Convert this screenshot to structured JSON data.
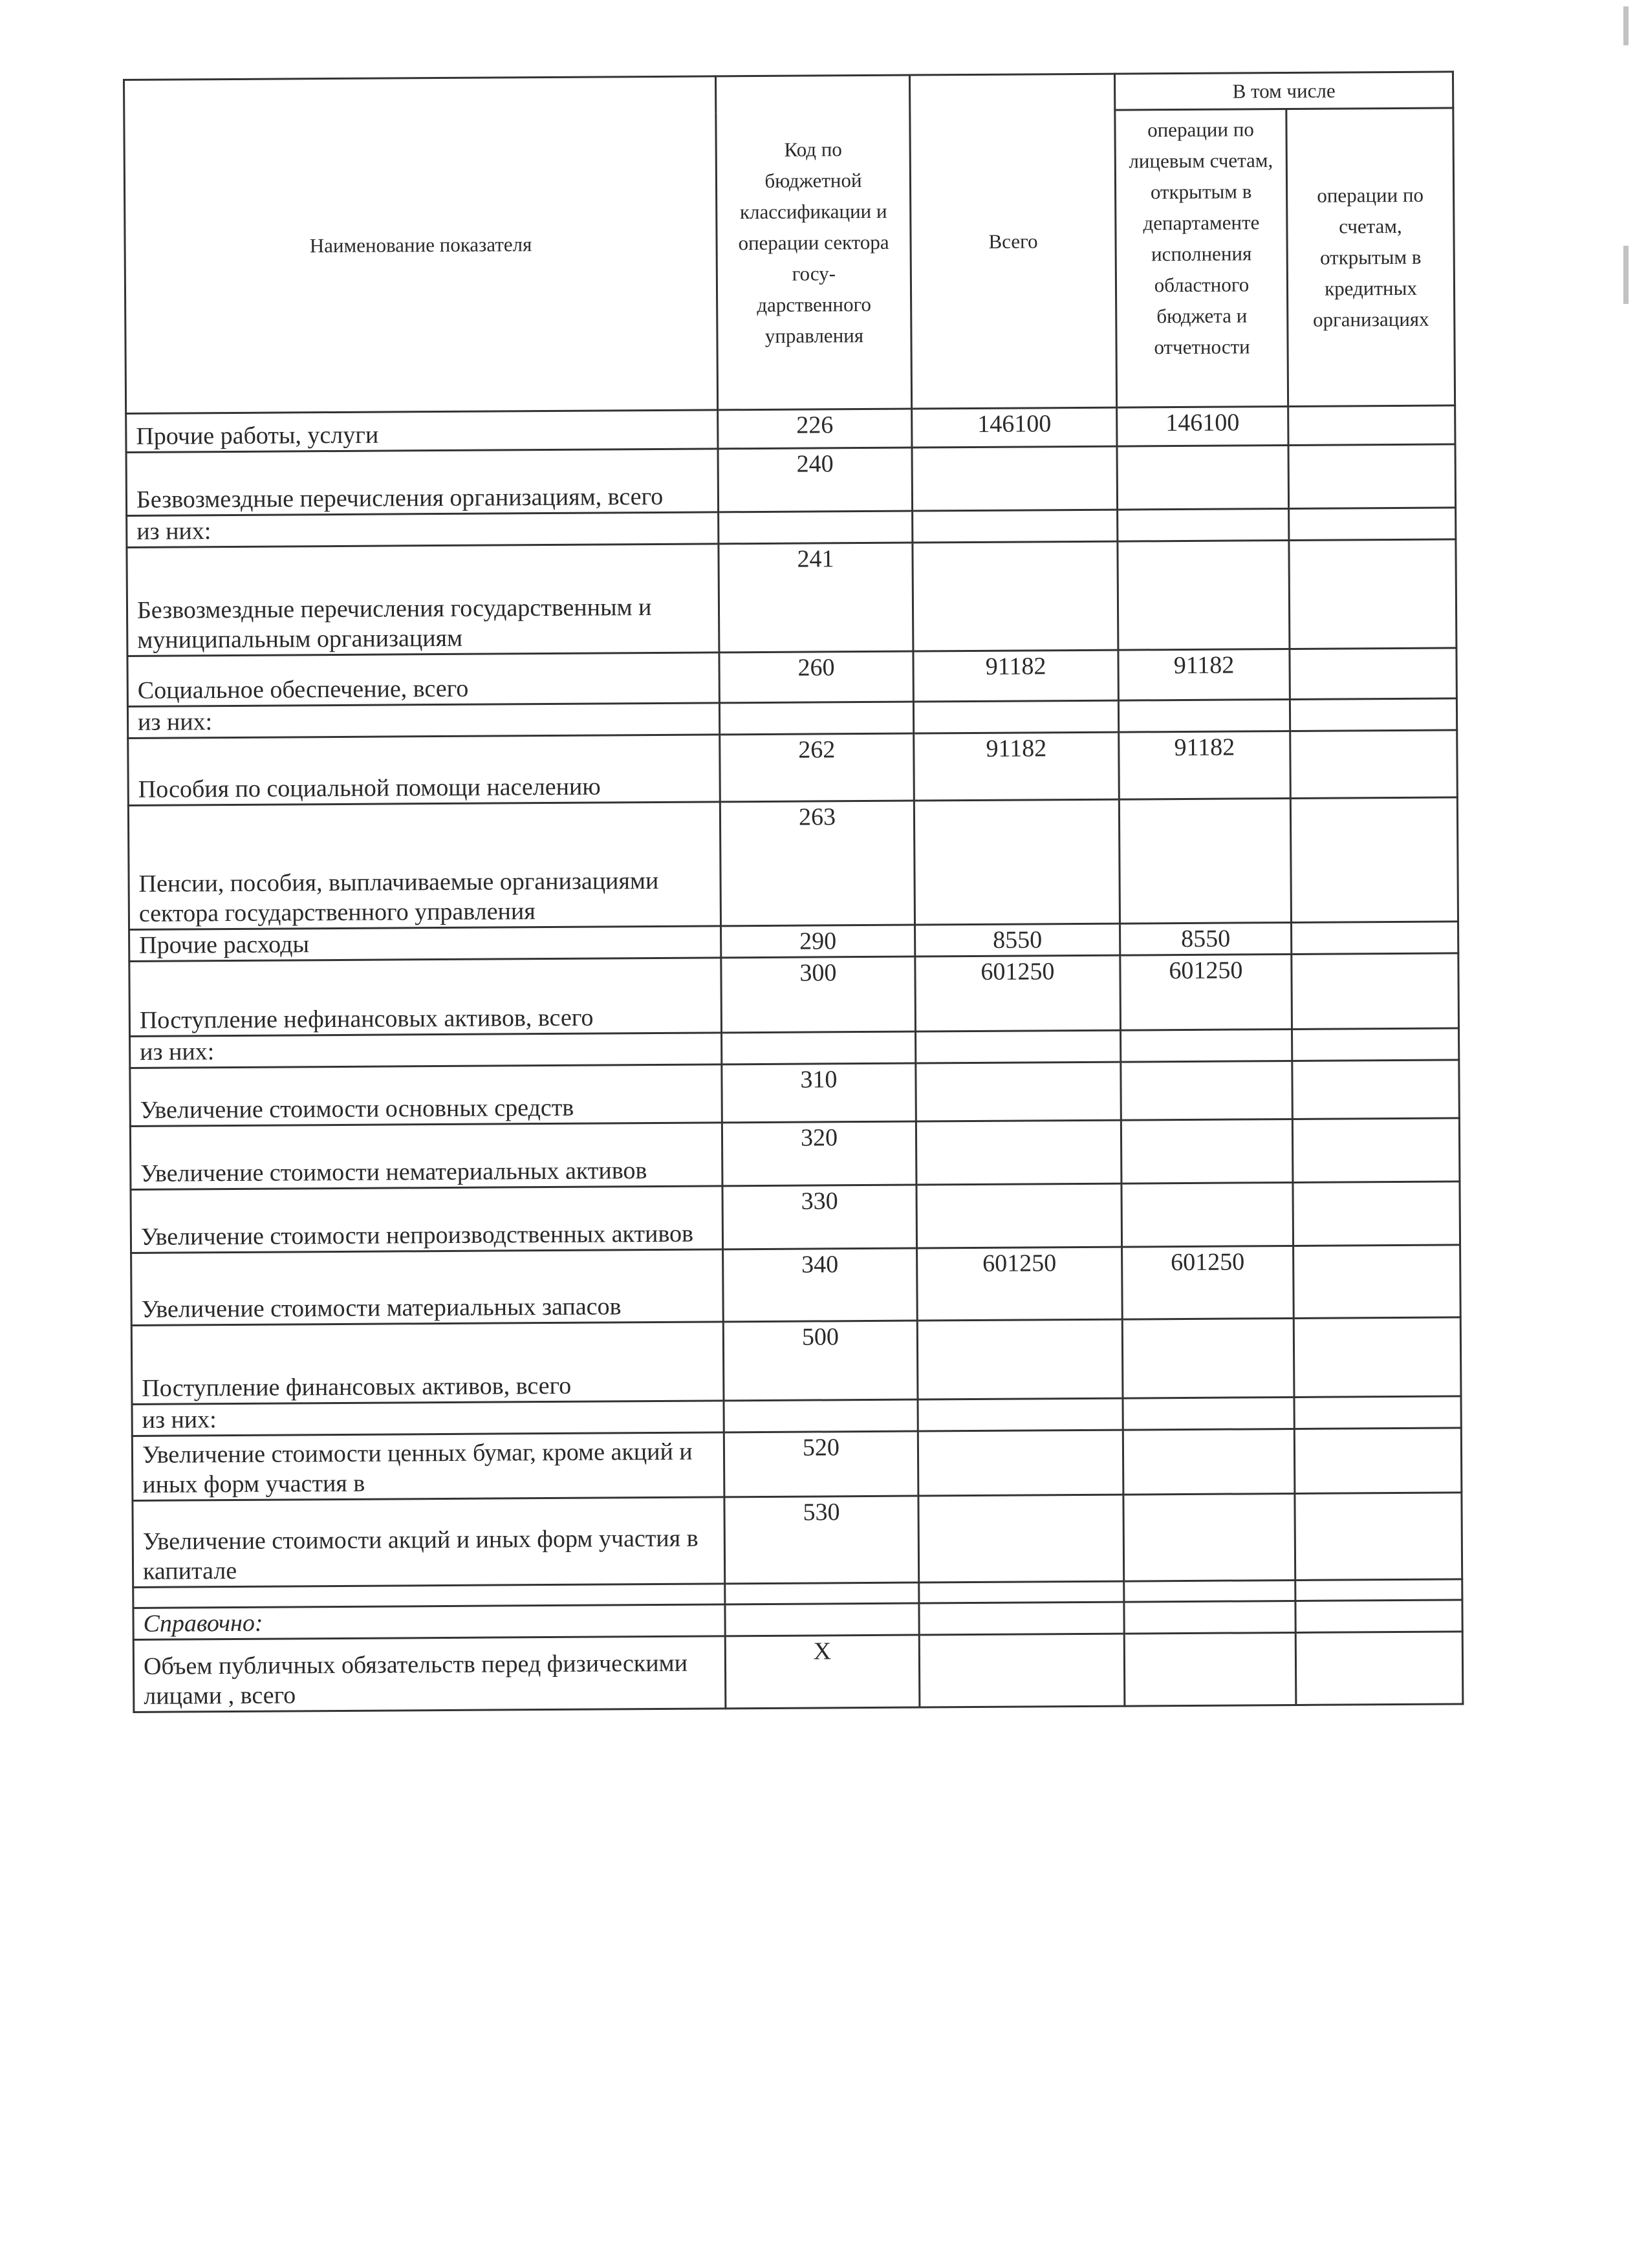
{
  "header": {
    "name_col": "Наименование показателя",
    "code_col": "Код по бюджетной классификации и операции сектора госу-дарственного управления",
    "total_col": "Всего",
    "including": "В том числе",
    "sub_col1": "операции по лицевым счетам, открытым в департаменте исполнения областного бюджета и отчетности",
    "sub_col2": "операции по счетам, открытым в кредитных организациях"
  },
  "rows": [
    {
      "label": "Прочие работы, услуги",
      "code": "226",
      "total": "146100",
      "dept": "146100",
      "credit": ""
    },
    {
      "label": "Безвозмездные перечисления организациям, всего",
      "code": "240",
      "total": "",
      "dept": "",
      "credit": ""
    },
    {
      "label": "из них:",
      "code": "",
      "total": "",
      "dept": "",
      "credit": ""
    },
    {
      "label": "Безвозмездные перечисления государственным и муниципальным организациям",
      "code": "241",
      "total": "",
      "dept": "",
      "credit": ""
    },
    {
      "label": "Социальное обеспечение, всего",
      "code": "260",
      "total": "91182",
      "dept": "91182",
      "credit": ""
    },
    {
      "label": "из них:",
      "code": "",
      "total": "",
      "dept": "",
      "credit": ""
    },
    {
      "label": "Пособия по социальной помощи населению",
      "code": "262",
      "total": "91182",
      "dept": "91182",
      "credit": ""
    },
    {
      "label": "Пенсии, пособия, выплачиваемые организациями сектора государственного управления",
      "code": "263",
      "total": "",
      "dept": "",
      "credit": ""
    },
    {
      "label": "Прочие расходы",
      "code": "290",
      "total": "8550",
      "dept": "8550",
      "credit": ""
    },
    {
      "label": "Поступление нефинансовых активов, всего",
      "code": "300",
      "total": "601250",
      "dept": "601250",
      "credit": ""
    },
    {
      "label": "из них:",
      "code": "",
      "total": "",
      "dept": "",
      "credit": ""
    },
    {
      "label": "Увеличение стоимости основных средств",
      "code": "310",
      "total": "",
      "dept": "",
      "credit": ""
    },
    {
      "label": "Увеличение стоимости нематериальных активов",
      "code": "320",
      "total": "",
      "dept": "",
      "credit": ""
    },
    {
      "label": "Увеличение стоимости непроизводственных активов",
      "code": "330",
      "total": "",
      "dept": "",
      "credit": ""
    },
    {
      "label": "Увеличение стоимости материальных запасов",
      "code": "340",
      "total": "601250",
      "dept": "601250",
      "credit": ""
    },
    {
      "label": "Поступление финансовых активов, всего",
      "code": "500",
      "total": "",
      "dept": "",
      "credit": ""
    },
    {
      "label": "из них:",
      "code": "",
      "total": "",
      "dept": "",
      "credit": ""
    },
    {
      "label": "Увеличение стоимости ценных бумаг, кроме акций и иных форм участия в",
      "code": "520",
      "total": "",
      "dept": "",
      "credit": ""
    },
    {
      "label": "Увеличение стоимости акций и иных форм участия в капитале",
      "code": "530",
      "total": "",
      "dept": "",
      "credit": ""
    },
    {
      "label": "",
      "code": "",
      "total": "",
      "dept": "",
      "credit": ""
    },
    {
      "label": "Справочно:",
      "code": "",
      "total": "",
      "dept": "",
      "credit": "",
      "italic": true
    },
    {
      "label": "Объем публичных обязательств перед физическими лицами , всего",
      "code": "X",
      "total": "",
      "dept": "",
      "credit": ""
    }
  ]
}
